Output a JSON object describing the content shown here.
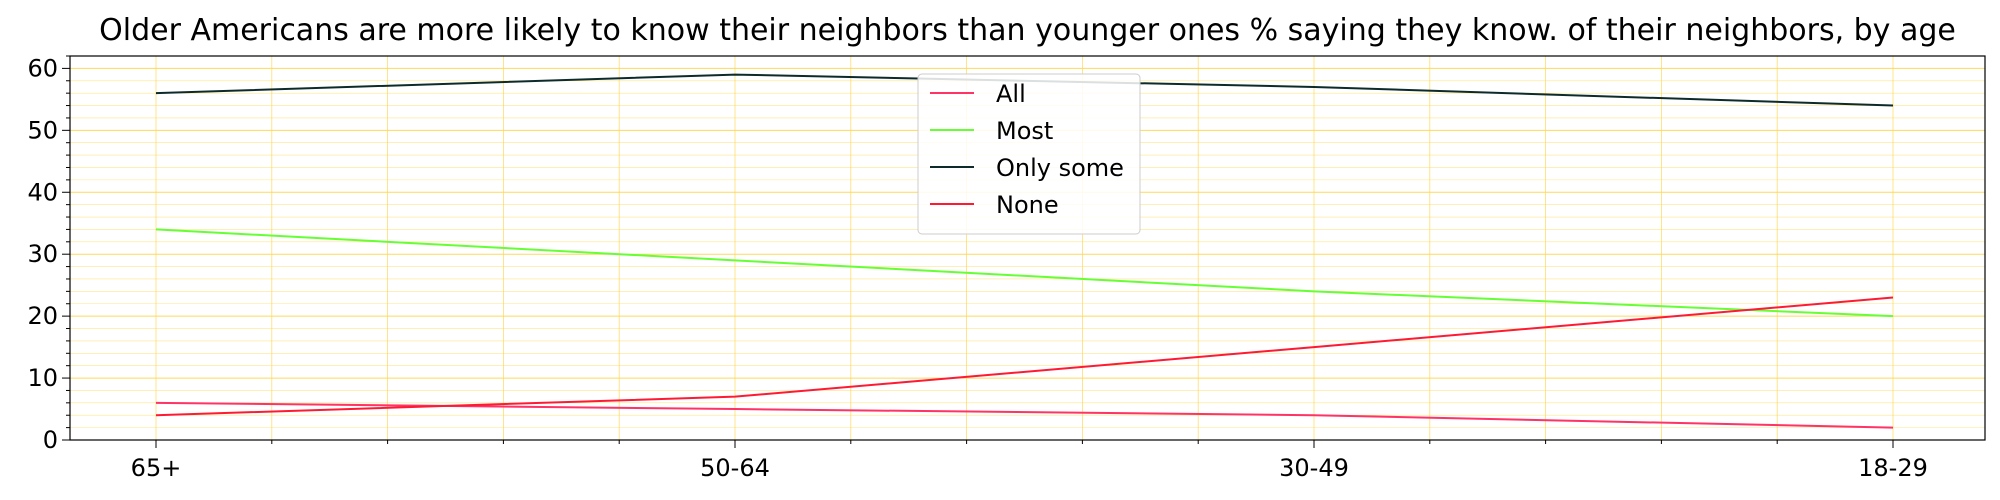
{
  "chart_data": {
    "type": "line",
    "title": "Older Americans are more likely to know their neighbors than younger ones % saying they know. of their neighbors, by age",
    "xlabel": "",
    "ylabel": "",
    "categories": [
      "65+",
      "50-64",
      "30-49",
      "18-29"
    ],
    "ylim": [
      0,
      62
    ],
    "yticks": [
      0,
      10,
      20,
      30,
      40,
      50,
      60
    ],
    "grid": true,
    "grid_minor": true,
    "legend_position": "top-center",
    "series": [
      {
        "name": "All",
        "color": "#ff3366",
        "values": [
          6,
          5,
          4,
          2
        ]
      },
      {
        "name": "Most",
        "color": "#66ff33",
        "values": [
          34,
          29,
          24,
          20
        ]
      },
      {
        "name": "Only some",
        "color": "#0d2b2b",
        "values": [
          56,
          59,
          57,
          54
        ]
      },
      {
        "name": "None",
        "color": "#ff1a33",
        "values": [
          4,
          7,
          15,
          23
        ]
      }
    ]
  }
}
